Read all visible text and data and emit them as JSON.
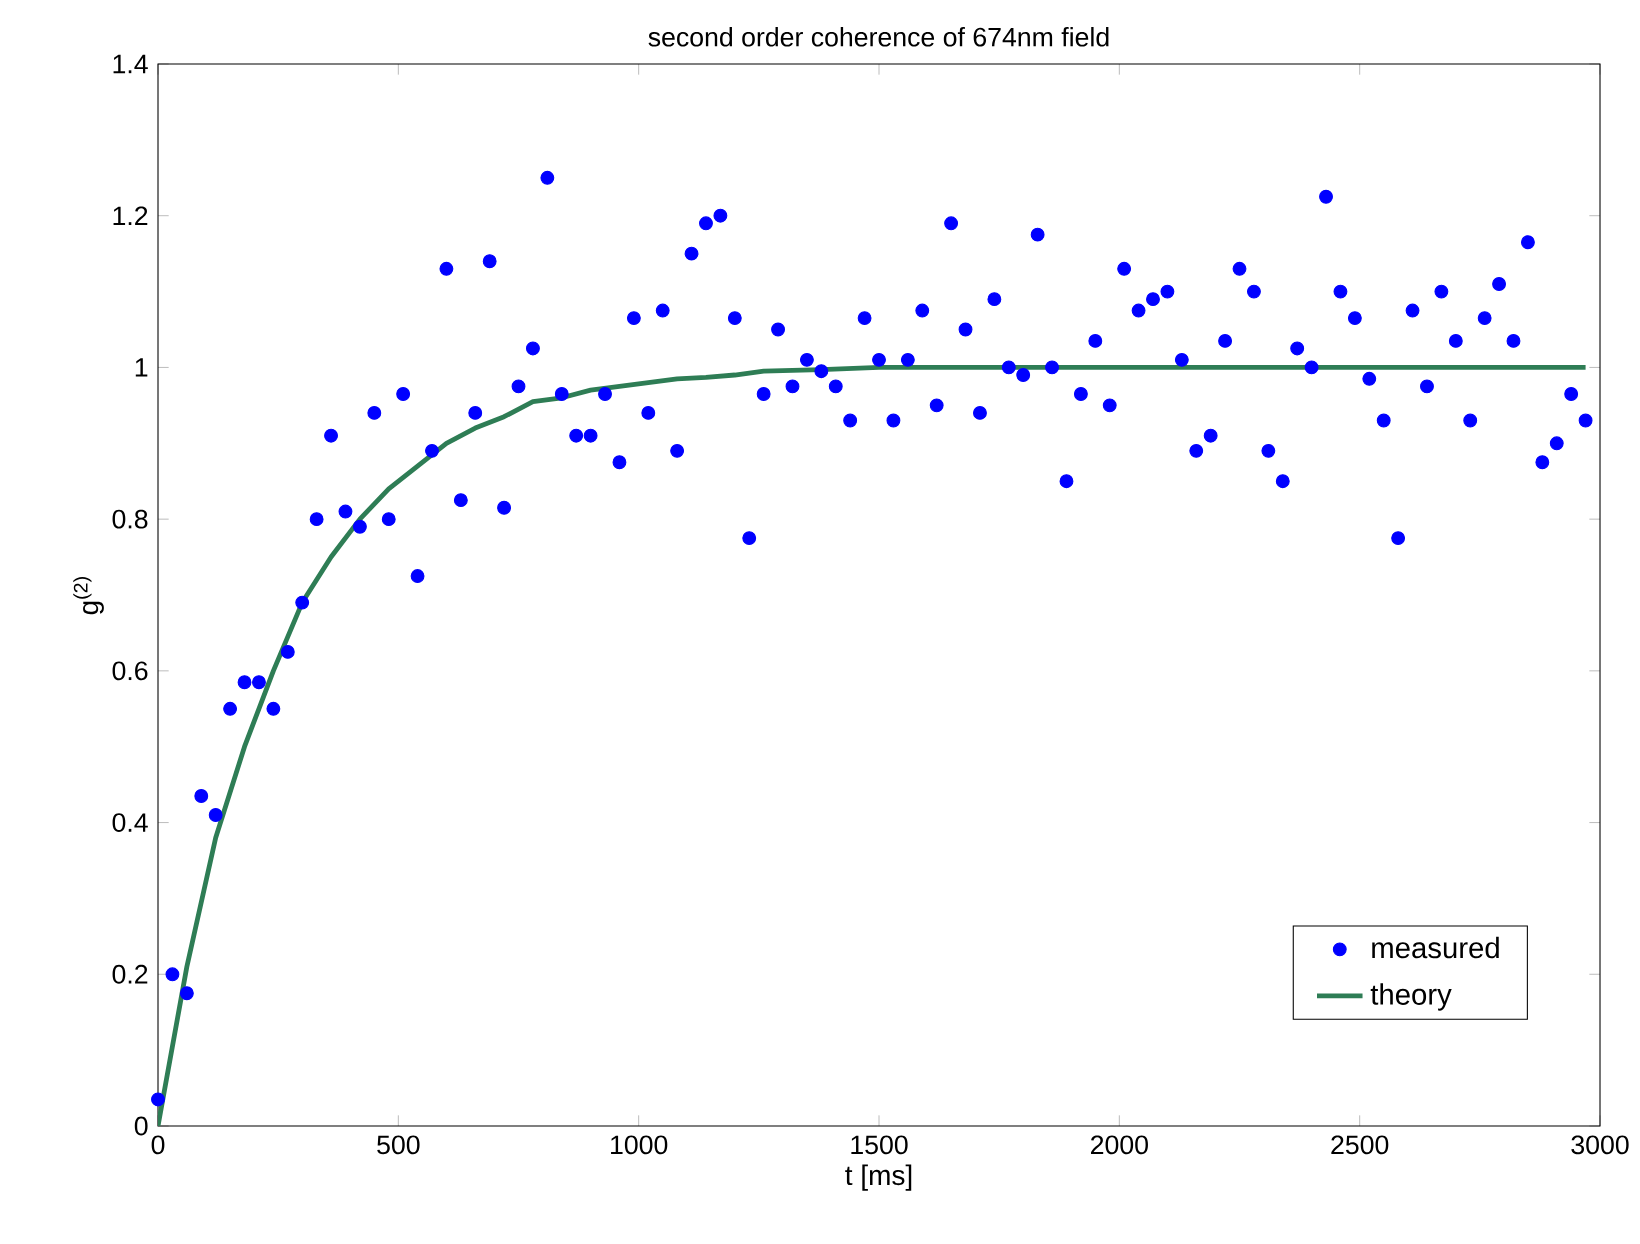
{
  "chart_data": {
    "type": "line",
    "title": "second order coherence of 674nm field",
    "xlabel": "t [ms]",
    "ylabel": "g$^{(2)}$",
    "xlim": [
      0,
      3000
    ],
    "ylim": [
      0,
      1.4
    ],
    "xticks": [
      0,
      500,
      1000,
      1500,
      2000,
      2500,
      3000
    ],
    "yticks": [
      0,
      0.2,
      0.4,
      0.6,
      0.8,
      1,
      1.2,
      1.4
    ],
    "grid": false,
    "legend": "bottom right",
    "series": [
      {
        "name": "measured",
        "type": "scatter",
        "marker": "circle",
        "color": "#0000ff",
        "x": [
          0,
          30,
          60,
          90,
          120,
          150,
          180,
          210,
          240,
          270,
          300,
          330,
          360,
          390,
          420,
          450,
          480,
          510,
          540,
          570,
          600,
          630,
          660,
          690,
          720,
          750,
          780,
          810,
          840,
          870,
          900,
          930,
          960,
          990,
          1020,
          1050,
          1080,
          1110,
          1140,
          1170,
          1200,
          1230,
          1260,
          1290,
          1320,
          1350,
          1380,
          1410,
          1440,
          1470,
          1500,
          1530,
          1560,
          1590,
          1620,
          1650,
          1680,
          1710,
          1740,
          1770,
          1800,
          1830,
          1860,
          1890,
          1920,
          1950,
          1980,
          2010,
          2040,
          2070,
          2100,
          2130,
          2160,
          2190,
          2220,
          2250,
          2280,
          2310,
          2340,
          2370,
          2400,
          2430,
          2460,
          2490,
          2520,
          2550,
          2580,
          2610,
          2640,
          2670,
          2700,
          2730,
          2760,
          2790,
          2820,
          2850,
          2880,
          2910,
          2940,
          2970
        ],
        "values": [
          0.035,
          0.2,
          0.175,
          0.435,
          0.41,
          0.55,
          0.585,
          0.585,
          0.55,
          0.625,
          0.69,
          0.8,
          0.91,
          0.81,
          0.79,
          0.94,
          0.8,
          0.965,
          0.725,
          0.89,
          1.13,
          0.825,
          0.94,
          1.14,
          0.815,
          0.975,
          1.025,
          1.25,
          0.965,
          0.91,
          0.91,
          0.965,
          0.875,
          1.065,
          0.94,
          1.075,
          0.89,
          1.15,
          1.19,
          1.2,
          1.065,
          0.775,
          0.965,
          1.05,
          0.975,
          1.01,
          0.995,
          0.975,
          0.93,
          1.065,
          1.01,
          0.93,
          1.01,
          1.075,
          0.95,
          1.19,
          1.05,
          0.94,
          1.09,
          1.0,
          0.99,
          1.175,
          1.0,
          0.85,
          0.965,
          1.035,
          0.95,
          1.13,
          1.075,
          1.09,
          1.1,
          1.01,
          0.89,
          0.91,
          1.035,
          1.13,
          1.1,
          0.89,
          0.85,
          1.025,
          1.0,
          1.225,
          1.1,
          1.065,
          0.985,
          0.93,
          0.775,
          1.075,
          0.975,
          1.1,
          1.035,
          0.93,
          1.065,
          1.11,
          1.035,
          1.165,
          0.875,
          0.9,
          0.965,
          0.93
        ]
      },
      {
        "name": "theory",
        "marker": "none",
        "line_style": "solid",
        "color": "#2e7d55",
        "x": [
          0,
          60,
          120,
          180,
          240,
          300,
          360,
          420,
          480,
          540,
          600,
          660,
          720,
          780,
          840,
          900,
          960,
          1020,
          1080,
          1140,
          1200,
          1260,
          1380,
          1500,
          2970
        ],
        "values": [
          0,
          0.21,
          0.38,
          0.5,
          0.6,
          0.69,
          0.75,
          0.8,
          0.84,
          0.87,
          0.9,
          0.92,
          0.935,
          0.955,
          0.96,
          0.97,
          0.975,
          0.98,
          0.985,
          0.987,
          0.99,
          0.995,
          0.997,
          1.0,
          1.0
        ]
      }
    ]
  }
}
